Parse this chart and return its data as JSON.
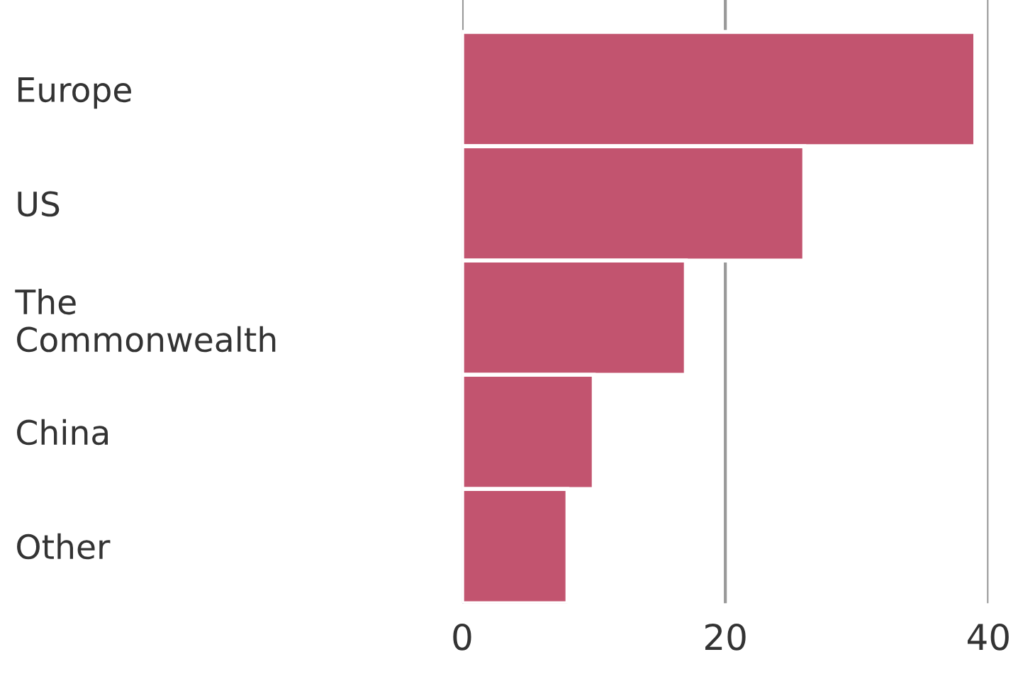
{
  "chart_data": {
    "type": "bar",
    "orientation": "horizontal",
    "categories": [
      "Europe",
      "US",
      "The\nCommonwealth",
      "China",
      "Other"
    ],
    "values": [
      39,
      26,
      17,
      10,
      8
    ],
    "color": "#c2546f",
    "xlim": [
      0,
      40
    ],
    "xticks": [
      0,
      20,
      40
    ],
    "grid": "x"
  }
}
